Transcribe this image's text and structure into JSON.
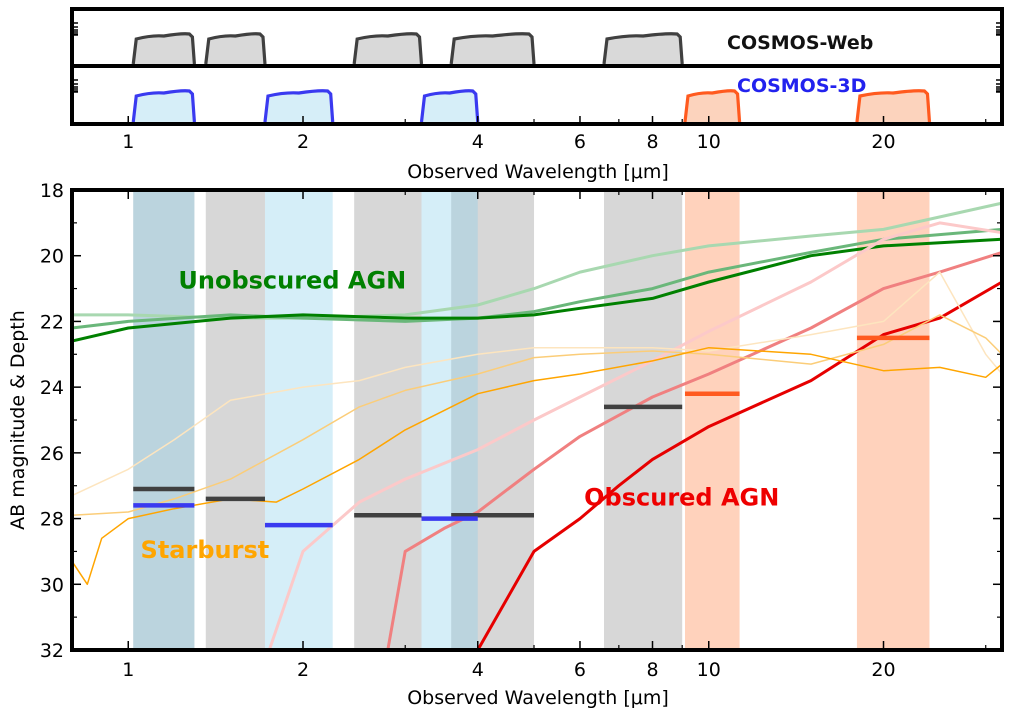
{
  "filters_panel": {
    "xlabel": "Observed Wavelength [μm]",
    "x_tick_labels": [
      {
        "value": 1,
        "label": "1"
      },
      {
        "value": 2,
        "label": "2"
      },
      {
        "value": 4,
        "label": "4"
      },
      {
        "value": 6,
        "label": "6"
      },
      {
        "value": 8,
        "label": "8"
      },
      {
        "value": 10,
        "label": "10"
      },
      {
        "value": 20,
        "label": "20"
      }
    ],
    "surveys": [
      {
        "name": "COSMOS-Web",
        "color": "#404040",
        "fill": "#d9d9d9",
        "bands": [
          [
            1.02,
            1.3
          ],
          [
            1.36,
            1.72
          ],
          [
            2.45,
            3.2
          ],
          [
            3.6,
            5.0
          ],
          [
            6.6,
            9.0
          ]
        ]
      },
      {
        "name": "COSMOS-3D",
        "color": "#3a3af0",
        "fill": "#d6eef8",
        "bands": [
          [
            1.02,
            1.3
          ],
          [
            1.72,
            2.25
          ],
          [
            3.2,
            4.0
          ]
        ]
      },
      {
        "name": "",
        "color": "#ff5a1f",
        "fill": "#fcd3bd",
        "bands": [
          [
            9.1,
            11.3
          ],
          [
            18.0,
            24.0
          ]
        ]
      }
    ]
  },
  "chart_data": {
    "type": "line",
    "xlabel": "Observed Wavelength [μm]",
    "ylabel": "AB magnitude & Depth",
    "x_scale": "log",
    "xlim": [
      0.8,
      32
    ],
    "ylim": [
      32,
      18
    ],
    "y_ticks": [
      18,
      20,
      22,
      24,
      26,
      28,
      30,
      32
    ],
    "x_tick_labels": [
      {
        "value": 1,
        "label": "1"
      },
      {
        "value": 2,
        "label": "2"
      },
      {
        "value": 4,
        "label": "4"
      },
      {
        "value": 6,
        "label": "6"
      },
      {
        "value": 8,
        "label": "8"
      },
      {
        "value": 10,
        "label": "10"
      },
      {
        "value": 20,
        "label": "20"
      }
    ],
    "bands": [
      {
        "survey": "COSMOS-Web",
        "range": [
          1.02,
          1.3
        ],
        "color": "#8c8c8c",
        "depth": 27.1
      },
      {
        "survey": "COSMOS-Web",
        "range": [
          1.36,
          1.72
        ],
        "color": "#8c8c8c",
        "depth": 27.4
      },
      {
        "survey": "COSMOS-Web",
        "range": [
          2.45,
          3.2
        ],
        "color": "#8c8c8c",
        "depth": 27.9
      },
      {
        "survey": "COSMOS-Web",
        "range": [
          3.6,
          5.0
        ],
        "color": "#8c8c8c",
        "depth": 27.9
      },
      {
        "survey": "COSMOS-Web",
        "range": [
          6.6,
          9.0
        ],
        "color": "#8c8c8c",
        "depth": 24.6
      },
      {
        "survey": "COSMOS-3D",
        "range": [
          1.02,
          1.3
        ],
        "color": "#87ceeb",
        "depth": 27.6
      },
      {
        "survey": "COSMOS-3D",
        "range": [
          1.72,
          2.25
        ],
        "color": "#87ceeb",
        "depth": 28.2
      },
      {
        "survey": "COSMOS-3D",
        "range": [
          3.2,
          4.0
        ],
        "color": "#87ceeb",
        "depth": 28.0
      },
      {
        "survey": "COSMOS-3D",
        "range": [
          9.1,
          11.3
        ],
        "color": "#ff7f3f",
        "depth": 24.2
      },
      {
        "survey": "COSMOS-3D",
        "range": [
          18.0,
          24.0
        ],
        "color": "#ff7f3f",
        "depth": 22.5
      }
    ],
    "depth_colors": {
      "COSMOS-Web": "#404040",
      "COSMOS-3D-blue": "#3a3af0",
      "COSMOS-3D-red": "#ff5a1f"
    },
    "series": [
      {
        "group": "Unobscured AGN",
        "color": "#a8d8b0",
        "width": 3,
        "x": [
          0.8,
          1.0,
          1.5,
          2.0,
          3.0,
          4.0,
          5.0,
          6.0,
          8.0,
          10.0,
          15.0,
          20.0,
          32.0
        ],
        "y": [
          21.8,
          21.8,
          21.9,
          21.9,
          21.8,
          21.5,
          21.0,
          20.5,
          20.0,
          19.7,
          19.4,
          19.2,
          18.4
        ]
      },
      {
        "group": "Unobscured AGN",
        "color": "#6ab77a",
        "width": 3,
        "x": [
          0.8,
          1.0,
          1.5,
          2.0,
          3.0,
          4.0,
          5.0,
          6.0,
          8.0,
          10.0,
          15.0,
          20.0,
          32.0
        ],
        "y": [
          22.2,
          22.0,
          21.8,
          21.9,
          22.0,
          21.9,
          21.7,
          21.4,
          21.0,
          20.5,
          19.9,
          19.5,
          19.2
        ]
      },
      {
        "group": "Unobscured AGN",
        "color": "#008000",
        "width": 3,
        "x": [
          0.8,
          1.0,
          1.5,
          2.0,
          3.0,
          4.0,
          5.0,
          6.0,
          8.0,
          10.0,
          15.0,
          20.0,
          32.0
        ],
        "y": [
          22.6,
          22.2,
          21.9,
          21.8,
          21.9,
          21.9,
          21.8,
          21.6,
          21.3,
          20.8,
          20.0,
          19.7,
          19.5
        ]
      },
      {
        "group": "Obscured AGN",
        "color": "#fcc9c9",
        "width": 3,
        "x": [
          1.75,
          2.0,
          2.5,
          3.0,
          4.0,
          5.0,
          6.0,
          8.0,
          10.0,
          15.0,
          20.0,
          25.0,
          32.0
        ],
        "y": [
          32.0,
          29.0,
          27.5,
          26.8,
          25.9,
          25.0,
          24.3,
          23.2,
          22.3,
          20.8,
          19.5,
          19.0,
          19.3
        ]
      },
      {
        "group": "Obscured AGN",
        "color": "#f08080",
        "width": 3,
        "x": [
          2.8,
          3.0,
          3.5,
          4.0,
          5.0,
          6.0,
          8.0,
          10.0,
          15.0,
          20.0,
          25.0,
          32.0
        ],
        "y": [
          32.0,
          29.0,
          28.3,
          27.8,
          26.5,
          25.5,
          24.3,
          23.6,
          22.2,
          21.0,
          20.5,
          19.9
        ]
      },
      {
        "group": "Obscured AGN",
        "color": "#e60000",
        "width": 3,
        "x": [
          4.0,
          5.0,
          6.0,
          7.0,
          8.0,
          10.0,
          15.0,
          20.0,
          25.0,
          32.0
        ],
        "y": [
          32.0,
          29.0,
          28.0,
          27.0,
          26.2,
          25.2,
          23.8,
          22.4,
          21.9,
          20.8
        ]
      },
      {
        "group": "Starburst",
        "color": "#fde5bf",
        "width": 1.5,
        "x": [
          0.8,
          1.0,
          1.2,
          1.5,
          2.0,
          2.5,
          3.0,
          4.0,
          5.0,
          6.0,
          8.0,
          10.0,
          15.0,
          20.0,
          25.0,
          30.0,
          32.0
        ],
        "y": [
          27.3,
          26.5,
          25.6,
          24.4,
          24.0,
          23.8,
          23.4,
          23.0,
          22.8,
          22.8,
          22.8,
          22.9,
          22.4,
          22.0,
          20.5,
          23.0,
          23.6
        ]
      },
      {
        "group": "Starburst",
        "color": "#fbcd79",
        "width": 1.5,
        "x": [
          0.8,
          1.0,
          1.2,
          1.5,
          2.0,
          2.5,
          3.0,
          4.0,
          5.0,
          6.0,
          8.0,
          10.0,
          15.0,
          20.0,
          25.0,
          30.0,
          32.0
        ],
        "y": [
          27.9,
          27.8,
          27.4,
          26.8,
          25.6,
          24.6,
          24.1,
          23.6,
          23.1,
          23.0,
          22.9,
          23.0,
          23.3,
          22.7,
          21.8,
          22.5,
          23.0
        ]
      },
      {
        "group": "Starburst",
        "color": "#ffa500",
        "width": 1.5,
        "x": [
          0.8,
          0.85,
          0.9,
          1.0,
          1.2,
          1.5,
          1.8,
          2.0,
          2.5,
          3.0,
          4.0,
          5.0,
          6.0,
          8.0,
          10.0,
          15.0,
          20.0,
          25.0,
          30.0,
          32.0
        ],
        "y": [
          29.3,
          30.0,
          28.6,
          28.0,
          27.7,
          27.4,
          27.5,
          27.1,
          26.2,
          25.3,
          24.2,
          23.8,
          23.6,
          23.2,
          22.8,
          23.0,
          23.5,
          23.4,
          23.7,
          23.3
        ]
      }
    ],
    "annotations": [
      {
        "text": "Unobscured AGN",
        "color": "#008000",
        "x": 1.22,
        "y": 21.0
      },
      {
        "text": "Obscured AGN",
        "color": "#ee0000",
        "x": 6.1,
        "y": 27.6
      },
      {
        "text": "Starburst",
        "color": "#ffa500",
        "x": 1.05,
        "y": 29.2
      }
    ]
  }
}
